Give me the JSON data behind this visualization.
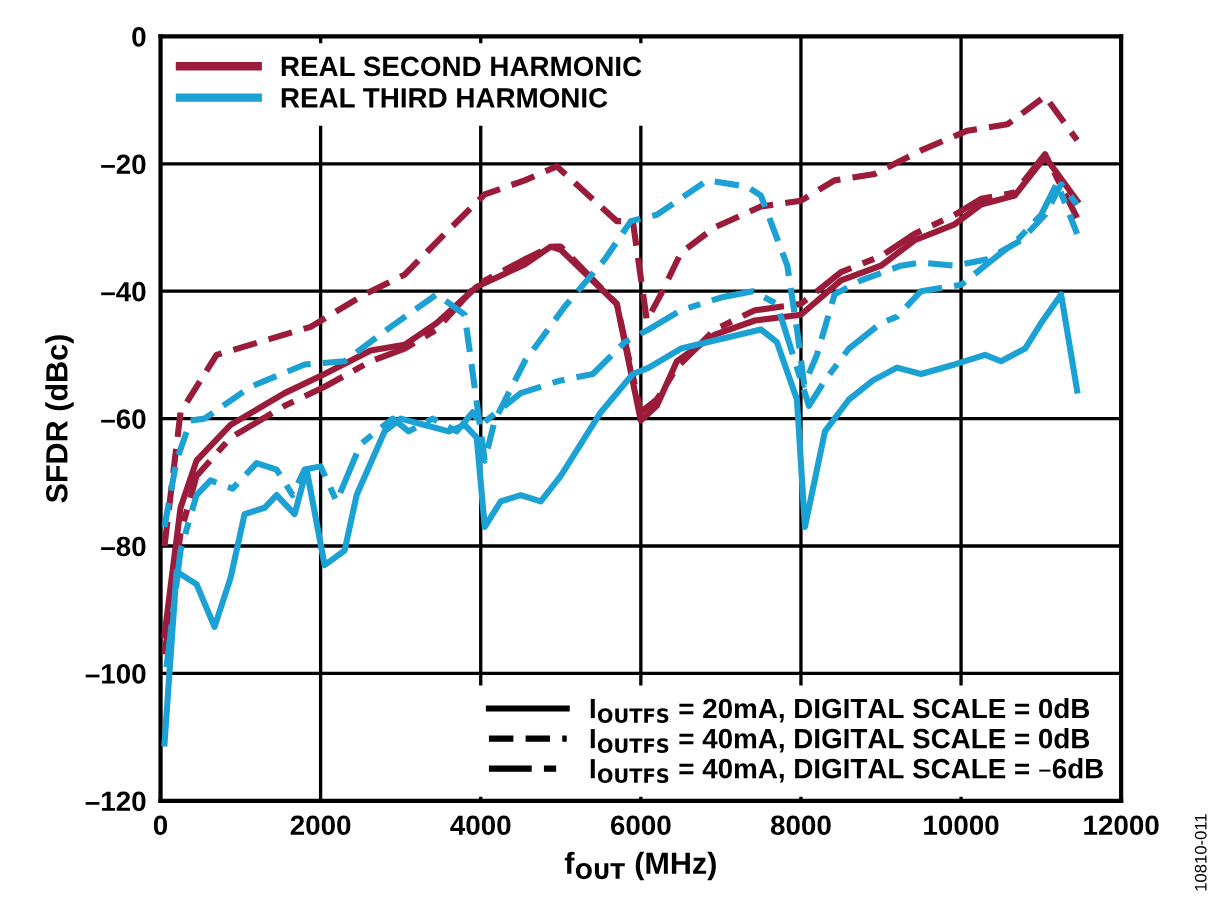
{
  "chart_data": {
    "type": "line",
    "xlabel": "f$_{OUT}$ (MHz)",
    "ylabel": "SFDR (dBc)",
    "xlim": [
      0,
      12000
    ],
    "xticks": [
      0,
      2000,
      4000,
      6000,
      8000,
      10000,
      12000
    ],
    "ylim": [
      -120,
      0
    ],
    "yticks": [
      {
        "value": -120,
        "label": "–120"
      },
      {
        "value": -100,
        "label": "–100"
      },
      {
        "value": -80,
        "label": "–80"
      },
      {
        "value": -60,
        "label": "–60"
      },
      {
        "value": -40,
        "label": "–40"
      },
      {
        "value": -20,
        "label": "–20"
      },
      0
    ],
    "grid": true,
    "legend": "top left",
    "marker": "none",
    "annotations": [
      "I$_{OUTFS}$ = 20mA, DIGITAL SCALE = 0dB",
      "I$_{OUTFS}$ = 40mA, DIGITAL SCALE = 0dB",
      "I$_{OUTFS}$ = 40mA, DIGITAL SCALE = –6dB",
      "10810-011"
    ],
    "series": [
      {
        "name": "REAL SECOND HARMONIC",
        "color": "#9b1b3a",
        "line_style": "solid",
        "x": [
          50,
          250,
          450,
          875,
          1550,
          2050,
          2625,
          3050,
          3450,
          3950,
          4550,
          4875,
          5000,
          5700,
          6000,
          6200,
          6450,
          6925,
          7425,
          8000,
          8500,
          9000,
          9420,
          9920,
          10250,
          10670,
          11050,
          11450
        ],
        "values": [
          -94,
          -74,
          -66.6,
          -61,
          -56,
          -53,
          -49.3,
          -48.4,
          -45,
          -39.3,
          -35.8,
          -33,
          -33.5,
          -42,
          -60.3,
          -58,
          -51,
          -46.8,
          -44.6,
          -43.7,
          -38.3,
          -36,
          -32,
          -29.5,
          -26.4,
          -25,
          -18.9,
          -25.8
        ]
      },
      {
        "color": "#9b1b3a",
        "line_style": "dashed",
        "x": [
          50,
          250,
          700,
          1875,
          2550,
          3050,
          3550,
          4050,
          4550,
          4950,
          5700,
          5900,
          6075,
          6250,
          6500,
          6920,
          7500,
          8000,
          8420,
          8920,
          9500,
          10080,
          10580,
          11050,
          11450
        ],
        "values": [
          -80,
          -59,
          -50,
          -45.6,
          -40.5,
          -37.4,
          -31,
          -24.8,
          -22.6,
          -20.4,
          -29,
          -29,
          -44.6,
          -40.5,
          -34,
          -30,
          -26.7,
          -25.8,
          -22.6,
          -21.6,
          -17.9,
          -14.8,
          -13.8,
          -9.4,
          -16.3
        ]
      },
      {
        "color": "#9b1b3a",
        "line_style": "dashdot",
        "x": [
          50,
          250,
          450,
          875,
          1550,
          2050,
          2625,
          3050,
          3450,
          3950,
          4550,
          4875,
          5000,
          5700,
          6000,
          6200,
          6450,
          6925,
          7425,
          8000,
          8500,
          9000,
          9420,
          9920,
          10250,
          10670,
          11050,
          11450
        ],
        "values": [
          -97,
          -78,
          -69,
          -63,
          -58,
          -55,
          -51,
          -49,
          -46,
          -39,
          -35,
          -33,
          -33,
          -42,
          -59,
          -57,
          -52,
          -46,
          -43,
          -42,
          -37,
          -34.5,
          -31,
          -28,
          -25.5,
          -24.5,
          -18.5,
          -28.5
        ]
      },
      {
        "name": "REAL THIRD HARMONIC",
        "color": "#1ba1d3",
        "line_style": "solid",
        "x": [
          50,
          200,
          450,
          675,
          875,
          1050,
          1300,
          1450,
          1675,
          1825,
          2050,
          2300,
          2450,
          2800,
          3000,
          3300,
          3600,
          3800,
          3950,
          4050,
          4250,
          4500,
          4750,
          5000,
          5500,
          5900,
          6100,
          6500,
          7000,
          7500,
          7700,
          7950,
          8050,
          8300,
          8600,
          8900,
          9200,
          9500,
          9920,
          10300,
          10500,
          10800,
          11000,
          11250,
          11450
        ],
        "values": [
          -111,
          -84,
          -86,
          -92.7,
          -85,
          -75,
          -74,
          -72,
          -75,
          -68,
          -83,
          -80.7,
          -72,
          -62,
          -60,
          -61,
          -62,
          -61,
          -63,
          -77,
          -73,
          -72,
          -73,
          -69,
          -59,
          -53,
          -52,
          -49,
          -47.5,
          -46,
          -48,
          -57,
          -77,
          -62,
          -57,
          -54,
          -52,
          -53,
          -51.5,
          -50,
          -51,
          -49,
          -45,
          -40.5,
          -55.6
        ]
      },
      {
        "color": "#1ba1d3",
        "line_style": "dashed",
        "x": [
          50,
          200,
          375,
          550,
          1125,
          1800,
          2300,
          2875,
          3450,
          3800,
          4050,
          4175,
          4550,
          5050,
          5550,
          5875,
          6200,
          6830,
          7330,
          7500,
          7830,
          7960,
          8040,
          8200,
          8420,
          8750,
          9250,
          9500,
          9920,
          10330,
          10750,
          11050,
          11250,
          11450
        ],
        "values": [
          -77,
          -66.6,
          -60.3,
          -60,
          -55,
          -51.5,
          -51,
          -45.6,
          -40.5,
          -43.7,
          -66.6,
          -60.3,
          -51,
          -42.4,
          -35,
          -29,
          -28,
          -22.6,
          -23.6,
          -25,
          -36,
          -46.8,
          -54.7,
          -50,
          -40.5,
          -38.3,
          -36,
          -35.5,
          -36,
          -35,
          -32,
          -28,
          -23.2,
          -26.4
        ]
      },
      {
        "color": "#1ba1d3",
        "line_style": "dashdot",
        "x": [
          75,
          250,
          450,
          625,
          900,
          1200,
          1450,
          1650,
          1800,
          2000,
          2200,
          2500,
          2900,
          3100,
          3400,
          3700,
          3900,
          4000,
          4200,
          4500,
          5000,
          5400,
          5800,
          6100,
          6500,
          7000,
          7400,
          7700,
          7950,
          8100,
          8300,
          8600,
          9000,
          9200,
          9500,
          10000,
          10300,
          10700,
          11000,
          11200,
          11450
        ],
        "values": [
          -99,
          -80.7,
          -72,
          -69.7,
          -71,
          -67,
          -68,
          -72,
          -68,
          -67.5,
          -73,
          -64,
          -60,
          -62,
          -60,
          -62,
          -59,
          -61,
          -59,
          -56,
          -54,
          -53,
          -48,
          -46,
          -43,
          -41,
          -40,
          -42,
          -52,
          -58,
          -54,
          -49,
          -45,
          -44,
          -40,
          -39,
          -36,
          -32,
          -28,
          -23,
          -31
        ]
      }
    ]
  }
}
